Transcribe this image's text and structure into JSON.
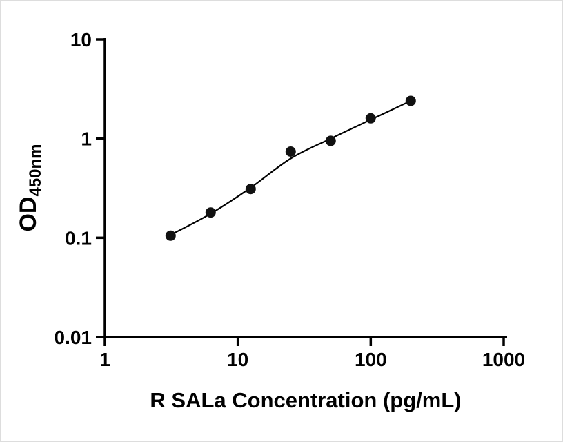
{
  "chart_data": {
    "type": "scatter",
    "title": "",
    "xlabel": "R SALa Concentration (pg/mL)",
    "ylabel_main": "OD",
    "ylabel_sub": "450nm",
    "x_scale": "log",
    "y_scale": "log",
    "xlim": [
      1,
      1000
    ],
    "ylim": [
      0.01,
      10
    ],
    "grid": false,
    "legend": "none",
    "x_ticks": [
      1,
      10,
      100,
      1000
    ],
    "x_tick_labels": [
      "1",
      "10",
      "100",
      "1000"
    ],
    "y_ticks": [
      0.01,
      0.1,
      1,
      10
    ],
    "y_tick_labels": [
      "0.01",
      "0.1",
      "1",
      "10"
    ],
    "axis_color": "#000000",
    "curve_color": "#000000",
    "marker_color": "#111111",
    "background_color": "#ffffff",
    "points": [
      {
        "x": 3.125,
        "y": 0.105
      },
      {
        "x": 6.25,
        "y": 0.18
      },
      {
        "x": 12.5,
        "y": 0.31
      },
      {
        "x": 25,
        "y": 0.74
      },
      {
        "x": 50,
        "y": 0.95
      },
      {
        "x": 100,
        "y": 1.6
      },
      {
        "x": 200,
        "y": 2.4
      }
    ],
    "fit_curve": [
      {
        "x": 3.125,
        "y": 0.107
      },
      {
        "x": 6.25,
        "y": 0.175
      },
      {
        "x": 12.5,
        "y": 0.32
      },
      {
        "x": 25,
        "y": 0.63
      },
      {
        "x": 50,
        "y": 1.0
      },
      {
        "x": 100,
        "y": 1.55
      },
      {
        "x": 200,
        "y": 2.4
      }
    ]
  }
}
